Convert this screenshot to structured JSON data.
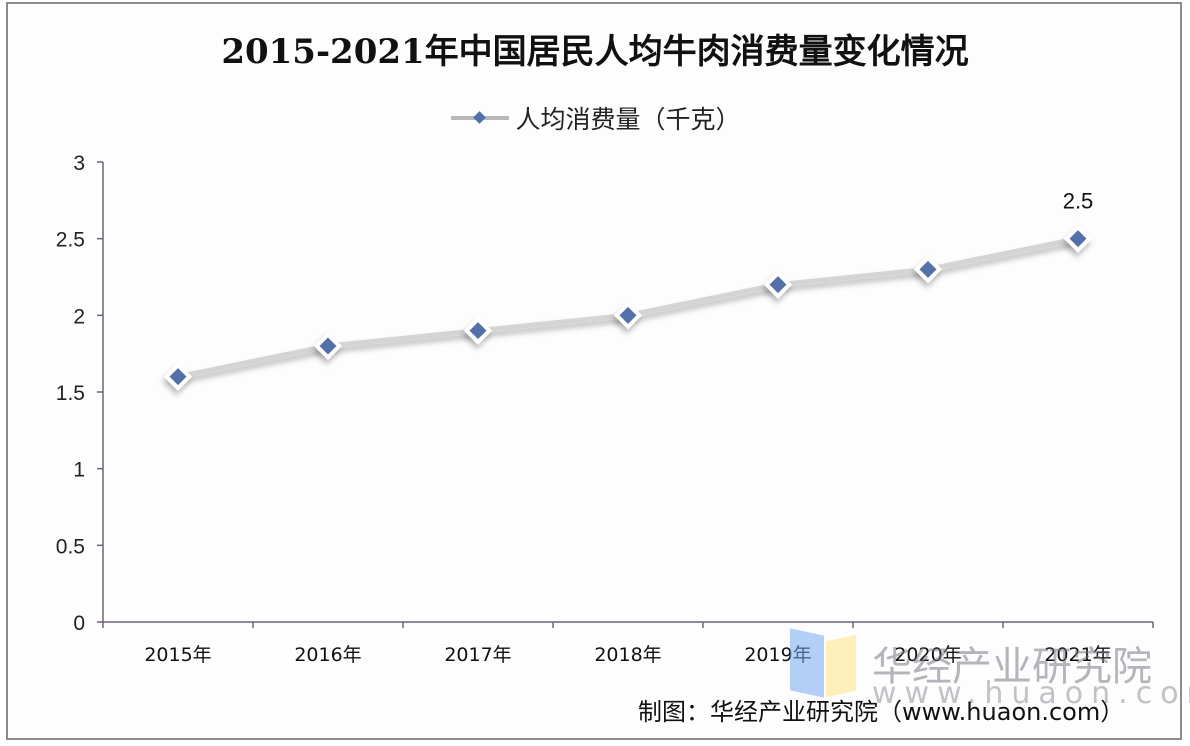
{
  "title": "2015-2021年中国居民人均牛肉消费量变化情况",
  "legend": {
    "label": "人均消费量（千克）",
    "marker": "diamond-line-marker"
  },
  "source": "制图：华经产业研究院（www.huaon.com）",
  "watermark": {
    "text": "华经产业研究院",
    "url": "www.huaon.com"
  },
  "colors": {
    "marker": "#5470a8",
    "line": "#d4d4d6",
    "axis": "#6e6478",
    "text": "#111111"
  },
  "chart_data": {
    "type": "line",
    "title": "2015-2021年中国居民人均牛肉消费量变化情况",
    "xlabel": "",
    "ylabel": "",
    "categories": [
      "2015年",
      "2016年",
      "2017年",
      "2018年",
      "2019年",
      "2020年",
      "2021年"
    ],
    "series": [
      {
        "name": "人均消费量（千克）",
        "values": [
          1.6,
          1.8,
          1.9,
          2.0,
          2.2,
          2.3,
          2.5
        ]
      }
    ],
    "yticks": [
      "0",
      "0.5",
      "1",
      "1.5",
      "2",
      "2.5",
      "3"
    ],
    "ylim": [
      0,
      3
    ],
    "grid": false,
    "legend_position": "top",
    "annotations": [
      {
        "category": "2021年",
        "label": "2.5"
      }
    ]
  }
}
